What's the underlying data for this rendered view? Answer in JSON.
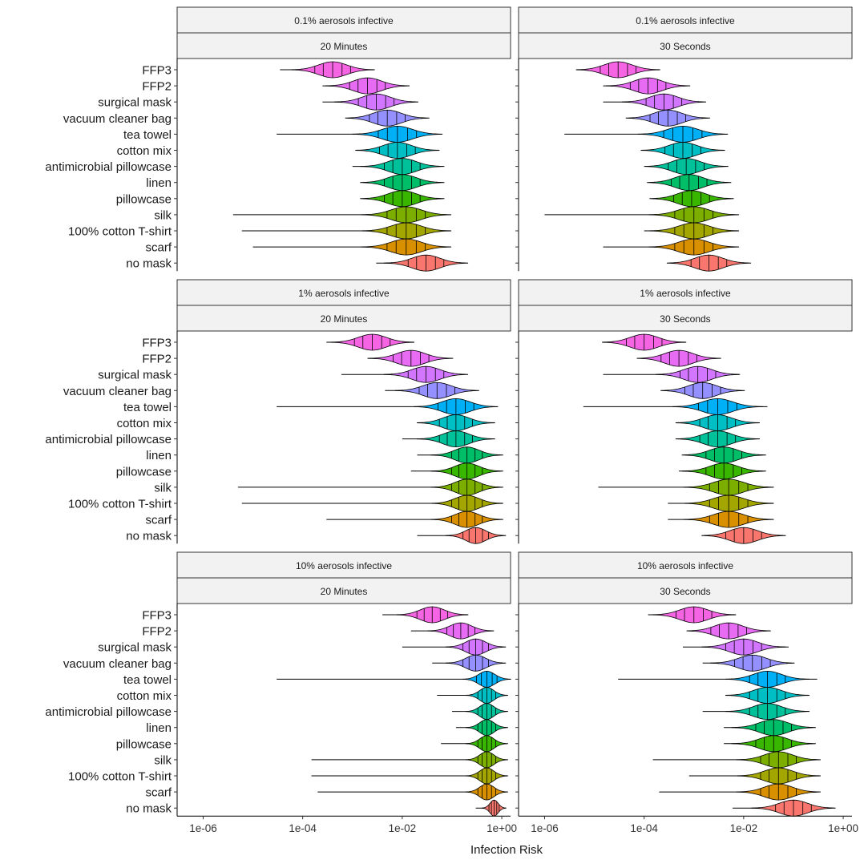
{
  "chart_data": {
    "type": "violin",
    "xlabel": "Infection Risk",
    "x_scale": "log10",
    "xlim": [
      3e-07,
      1.5
    ],
    "x_ticks": [
      {
        "value": 1e-06,
        "label": "1e-06"
      },
      {
        "value": 0.0001,
        "label": "1e-04"
      },
      {
        "value": 0.01,
        "label": "1e-02"
      },
      {
        "value": 1,
        "label": "1e+00"
      }
    ],
    "categories": [
      "FFP3",
      "FFP2",
      "surgical mask",
      "vacuum cleaner bag",
      "tea towel",
      "cotton mix",
      "antimicrobial pillowcase",
      "linen",
      "pillowcase",
      "silk",
      "100% cotton T-shirt",
      "scarf",
      "no mask"
    ],
    "colors": [
      "#f564e3",
      "#e76bf3",
      "#d376ff",
      "#9590ff",
      "#00b0f6",
      "#00bfc4",
      "#00c19a",
      "#00be67",
      "#39b600",
      "#7cae00",
      "#a3a500",
      "#d89000",
      "#f8766d"
    ],
    "grid": false,
    "legend": "none",
    "facets": [
      {
        "aerosol": "0.1% aerosols infective",
        "duration": "20 Minutes",
        "series": [
          {
            "name": "FFP3",
            "whisker": [
              3.5e-05,
              0.0015
            ],
            "median": 0.0004,
            "spread": 0.28
          },
          {
            "name": "FFP2",
            "whisker": [
              0.00025,
              0.003
            ],
            "median": 0.002,
            "spread": 0.28
          },
          {
            "name": "surgical mask",
            "whisker": [
              0.00025,
              0.005
            ],
            "median": 0.003,
            "spread": 0.28
          },
          {
            "name": "vacuum cleaner bag",
            "whisker": [
              0.0009,
              0.0045
            ],
            "median": 0.005,
            "spread": 0.28
          },
          {
            "name": "tea towel",
            "whisker": [
              3e-05,
              0.02
            ],
            "median": 0.008,
            "spread": 0.3
          },
          {
            "name": "cotton mix",
            "whisker": [
              0.002,
              0.015
            ],
            "median": 0.008,
            "spread": 0.28
          },
          {
            "name": "antimicrobial pillowcase",
            "whisker": [
              0.001,
              0.015
            ],
            "median": 0.01,
            "spread": 0.28
          },
          {
            "name": "linen",
            "whisker": [
              0.0025,
              0.016
            ],
            "median": 0.01,
            "spread": 0.28
          },
          {
            "name": "pillowcase",
            "whisker": [
              0.0025,
              0.02
            ],
            "median": 0.01,
            "spread": 0.28
          },
          {
            "name": "silk",
            "whisker": [
              4e-06,
              0.02
            ],
            "median": 0.012,
            "spread": 0.3
          },
          {
            "name": "100% cotton T-shirt",
            "whisker": [
              6e-06,
              0.02
            ],
            "median": 0.012,
            "spread": 0.3
          },
          {
            "name": "scarf",
            "whisker": [
              1e-05,
              0.02
            ],
            "median": 0.012,
            "spread": 0.3
          },
          {
            "name": "no mask",
            "whisker": [
              0.003,
              0.05
            ],
            "median": 0.03,
            "spread": 0.28
          }
        ]
      },
      {
        "aerosol": "0.1% aerosols infective",
        "duration": "30 Seconds",
        "series": [
          {
            "name": "FFP3",
            "whisker": [
              5e-06,
              0.0002
            ],
            "median": 3e-05,
            "spread": 0.28
          },
          {
            "name": "FFP2",
            "whisker": [
              1.5e-05,
              0.0006
            ],
            "median": 0.00012,
            "spread": 0.28
          },
          {
            "name": "surgical mask",
            "whisker": [
              1.5e-05,
              0.001
            ],
            "median": 0.00025,
            "spread": 0.28
          },
          {
            "name": "vacuum cleaner bag",
            "whisker": [
              0.00012,
              0.0008
            ],
            "median": 0.0003,
            "spread": 0.28
          },
          {
            "name": "tea towel",
            "whisker": [
              2.5e-06,
              0.003
            ],
            "median": 0.0006,
            "spread": 0.3
          },
          {
            "name": "cotton mix",
            "whisker": [
              0.0003,
              0.002
            ],
            "median": 0.0006,
            "spread": 0.28
          },
          {
            "name": "antimicrobial pillowcase",
            "whisker": [
              0.00015,
              0.002
            ],
            "median": 0.0007,
            "spread": 0.28
          },
          {
            "name": "linen",
            "whisker": [
              0.00025,
              0.002
            ],
            "median": 0.0008,
            "spread": 0.28
          },
          {
            "name": "pillowcase",
            "whisker": [
              0.0002,
              0.004
            ],
            "median": 0.0009,
            "spread": 0.28
          },
          {
            "name": "silk",
            "whisker": [
              1e-06,
              0.005
            ],
            "median": 0.001,
            "spread": 0.3
          },
          {
            "name": "100% cotton T-shirt",
            "whisker": [
              0.0001,
              0.004
            ],
            "median": 0.001,
            "spread": 0.3
          },
          {
            "name": "scarf",
            "whisker": [
              1.5e-05,
              0.004
            ],
            "median": 0.001,
            "spread": 0.3
          },
          {
            "name": "no mask",
            "whisker": [
              0.0005,
              0.008
            ],
            "median": 0.002,
            "spread": 0.28
          }
        ]
      },
      {
        "aerosol": "1% aerosols infective",
        "duration": "20 Minutes",
        "series": [
          {
            "name": "FFP3",
            "whisker": [
              0.0003,
              0.008
            ],
            "median": 0.0025,
            "spread": 0.28
          },
          {
            "name": "FFP2",
            "whisker": [
              0.002,
              0.02
            ],
            "median": 0.015,
            "spread": 0.28
          },
          {
            "name": "surgical mask",
            "whisker": [
              0.0006,
              0.08
            ],
            "median": 0.03,
            "spread": 0.28
          },
          {
            "name": "vacuum cleaner bag",
            "whisker": [
              0.0045,
              0.08
            ],
            "median": 0.05,
            "spread": 0.28
          },
          {
            "name": "tea towel",
            "whisker": [
              3e-05,
              0.1
            ],
            "median": 0.12,
            "spread": 0.28
          },
          {
            "name": "cotton mix",
            "whisker": [
              0.02,
              0.1
            ],
            "median": 0.12,
            "spread": 0.26
          },
          {
            "name": "antimicrobial pillowcase",
            "whisker": [
              0.01,
              0.1
            ],
            "median": 0.12,
            "spread": 0.26
          },
          {
            "name": "linen",
            "whisker": [
              0.02,
              0.1
            ],
            "median": 0.2,
            "spread": 0.24
          },
          {
            "name": "pillowcase",
            "whisker": [
              0.015,
              0.1
            ],
            "median": 0.2,
            "spread": 0.24
          },
          {
            "name": "silk",
            "whisker": [
              5e-06,
              0.1
            ],
            "median": 0.2,
            "spread": 0.24
          },
          {
            "name": "100% cotton T-shirt",
            "whisker": [
              6e-06,
              0.1
            ],
            "median": 0.2,
            "spread": 0.24
          },
          {
            "name": "scarf",
            "whisker": [
              0.0003,
              0.1
            ],
            "median": 0.2,
            "spread": 0.24
          },
          {
            "name": "no mask",
            "whisker": [
              0.02,
              0.1
            ],
            "median": 0.3,
            "spread": 0.2
          }
        ]
      },
      {
        "aerosol": "1% aerosols infective",
        "duration": "30 Seconds",
        "series": [
          {
            "name": "FFP3",
            "whisker": [
              1.5e-05,
              0.0003
            ],
            "median": 0.0001,
            "spread": 0.28
          },
          {
            "name": "FFP2",
            "whisker": [
              0.00015,
              0.002
            ],
            "median": 0.0005,
            "spread": 0.28
          },
          {
            "name": "surgical mask",
            "whisker": [
              1.5e-05,
              0.008
            ],
            "median": 0.0012,
            "spread": 0.28
          },
          {
            "name": "vacuum cleaner bag",
            "whisker": [
              0.0005,
              0.006
            ],
            "median": 0.0015,
            "spread": 0.28
          },
          {
            "name": "tea towel",
            "whisker": [
              6e-06,
              0.03
            ],
            "median": 0.003,
            "spread": 0.3
          },
          {
            "name": "cotton mix",
            "whisker": [
              0.0012,
              0.015
            ],
            "median": 0.003,
            "spread": 0.28
          },
          {
            "name": "antimicrobial pillowcase",
            "whisker": [
              0.0008,
              0.015
            ],
            "median": 0.003,
            "spread": 0.28
          },
          {
            "name": "linen",
            "whisker": [
              0.0012,
              0.015
            ],
            "median": 0.004,
            "spread": 0.28
          },
          {
            "name": "pillowcase",
            "whisker": [
              0.0005,
              0.02
            ],
            "median": 0.004,
            "spread": 0.28
          },
          {
            "name": "silk",
            "whisker": [
              1.2e-05,
              0.03
            ],
            "median": 0.005,
            "spread": 0.3
          },
          {
            "name": "100% cotton T-shirt",
            "whisker": [
              0.0003,
              0.03
            ],
            "median": 0.005,
            "spread": 0.3
          },
          {
            "name": "scarf",
            "whisker": [
              0.0003,
              0.02
            ],
            "median": 0.005,
            "spread": 0.3
          },
          {
            "name": "no mask",
            "whisker": [
              0.003,
              0.04
            ],
            "median": 0.01,
            "spread": 0.28
          }
        ]
      },
      {
        "aerosol": "10% aerosols infective",
        "duration": "20 Minutes",
        "series": [
          {
            "name": "FFP3",
            "whisker": [
              0.004,
              0.07
            ],
            "median": 0.04,
            "spread": 0.24
          },
          {
            "name": "FFP2",
            "whisker": [
              0.015,
              0.15
            ],
            "median": 0.15,
            "spread": 0.22
          },
          {
            "name": "surgical mask",
            "whisker": [
              0.01,
              0.3
            ],
            "median": 0.3,
            "spread": 0.2
          },
          {
            "name": "vacuum cleaner bag",
            "whisker": [
              0.04,
              0.3
            ],
            "median": 0.3,
            "spread": 0.2
          },
          {
            "name": "tea towel",
            "whisker": [
              3e-05,
              0.5
            ],
            "median": 0.5,
            "spread": 0.16
          },
          {
            "name": "cotton mix",
            "whisker": [
              0.05,
              0.5
            ],
            "median": 0.5,
            "spread": 0.14
          },
          {
            "name": "antimicrobial pillowcase",
            "whisker": [
              0.1,
              0.5
            ],
            "median": 0.5,
            "spread": 0.14
          },
          {
            "name": "linen",
            "whisker": [
              0.12,
              0.5
            ],
            "median": 0.5,
            "spread": 0.14
          },
          {
            "name": "pillowcase",
            "whisker": [
              0.06,
              0.5
            ],
            "median": 0.5,
            "spread": 0.14
          },
          {
            "name": "silk",
            "whisker": [
              0.00015,
              0.5
            ],
            "median": 0.5,
            "spread": 0.14
          },
          {
            "name": "100% cotton T-shirt",
            "whisker": [
              0.00015,
              0.5
            ],
            "median": 0.5,
            "spread": 0.14
          },
          {
            "name": "scarf",
            "whisker": [
              0.0002,
              0.5
            ],
            "median": 0.5,
            "spread": 0.14
          },
          {
            "name": "no mask",
            "whisker": [
              0.3,
              0.6
            ],
            "median": 0.7,
            "spread": 0.08
          }
        ]
      },
      {
        "aerosol": "10% aerosols infective",
        "duration": "30 Seconds",
        "series": [
          {
            "name": "FFP3",
            "whisker": [
              0.00012,
              0.002
            ],
            "median": 0.001,
            "spread": 0.28
          },
          {
            "name": "FFP2",
            "whisker": [
              0.0008,
              0.02
            ],
            "median": 0.005,
            "spread": 0.28
          },
          {
            "name": "surgical mask",
            "whisker": [
              0.0006,
              0.08
            ],
            "median": 0.01,
            "spread": 0.28
          },
          {
            "name": "vacuum cleaner bag",
            "whisker": [
              0.0015,
              0.08
            ],
            "median": 0.015,
            "spread": 0.28
          },
          {
            "name": "tea towel",
            "whisker": [
              3e-05,
              0.3
            ],
            "median": 0.03,
            "spread": 0.28
          },
          {
            "name": "cotton mix",
            "whisker": [
              0.006,
              0.12
            ],
            "median": 0.03,
            "spread": 0.28
          },
          {
            "name": "antimicrobial pillowcase",
            "whisker": [
              0.0015,
              0.15
            ],
            "median": 0.03,
            "spread": 0.28
          },
          {
            "name": "linen",
            "whisker": [
              0.004,
              0.2
            ],
            "median": 0.04,
            "spread": 0.28
          },
          {
            "name": "pillowcase",
            "whisker": [
              0.004,
              0.2
            ],
            "median": 0.04,
            "spread": 0.28
          },
          {
            "name": "silk",
            "whisker": [
              0.00015,
              0.3
            ],
            "median": 0.05,
            "spread": 0.28
          },
          {
            "name": "100% cotton T-shirt",
            "whisker": [
              0.0008,
              0.2
            ],
            "median": 0.05,
            "spread": 0.28
          },
          {
            "name": "scarf",
            "whisker": [
              0.0002,
              0.3
            ],
            "median": 0.05,
            "spread": 0.28
          },
          {
            "name": "no mask",
            "whisker": [
              0.006,
              0.4
            ],
            "median": 0.1,
            "spread": 0.28
          }
        ]
      }
    ]
  }
}
